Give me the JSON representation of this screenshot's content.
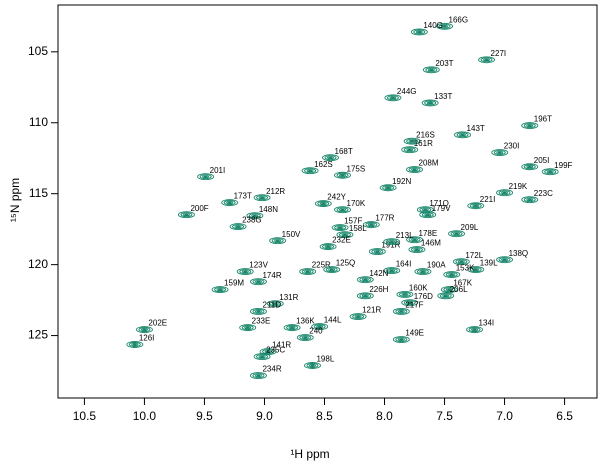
{
  "chart_data": {
    "type": "scatter",
    "x_label": "¹H ppm",
    "y_label": "¹⁵N ppm",
    "color": "#17866a",
    "xlim": [
      10.72,
      6.23
    ],
    "ylim": [
      101.7,
      129.4
    ],
    "xticks": [
      10.5,
      {
        "value": 10,
        "label": "10.0"
      },
      9.5,
      {
        "value": 9,
        "label": "9.0"
      },
      8.5,
      {
        "value": 8,
        "label": "8.0"
      },
      7.5,
      {
        "value": 7,
        "label": "7.0"
      },
      6.5
    ],
    "yticks": [
      105,
      110,
      115,
      120,
      125
    ],
    "point_labels": [
      "166G",
      "140G",
      "227I",
      "203T",
      "244G",
      "133T",
      "196T",
      "143T",
      "216S",
      "161R",
      "230I",
      "168T",
      "208M",
      "162S",
      "175S",
      "192N",
      "205I",
      "199F",
      "201I",
      "212R",
      "173T",
      "219K",
      "223C",
      "148N",
      "242Y",
      "221I",
      "170K",
      "171Q",
      "179V",
      "200F",
      "238G",
      "178E",
      "209L",
      "172L",
      "139L",
      "153K",
      "138Q",
      "123V",
      "225R",
      "174R",
      "159M",
      "167K",
      "206L",
      "226H",
      "160K",
      "176D",
      "131R",
      "211D",
      "121R",
      "217F",
      "144L",
      "136K",
      "233E",
      "149E",
      "134I",
      "202E",
      "126I",
      "240",
      "141R",
      "235C",
      "198L",
      "234R",
      "177R",
      "157F",
      "158L",
      "191R",
      "213L",
      "146M",
      "232E",
      "125Q",
      "190A",
      "164I",
      "142N",
      "150V"
    ],
    "x": [
      7.5,
      7.71,
      7.15,
      7.61,
      7.93,
      7.62,
      6.79,
      7.35,
      7.77,
      7.79,
      7.04,
      8.45,
      7.75,
      8.62,
      8.35,
      7.97,
      6.79,
      6.62,
      9.49,
      9.02,
      9.29,
      7.0,
      6.79,
      9.08,
      8.51,
      7.24,
      8.35,
      7.66,
      7.64,
      9.65,
      9.22,
      7.75,
      7.4,
      7.36,
      7.24,
      7.44,
      7.0,
      9.16,
      8.64,
      9.05,
      9.37,
      7.46,
      7.49,
      8.16,
      7.83,
      7.79,
      8.91,
      9.05,
      8.22,
      7.86,
      8.54,
      8.77,
      9.14,
      7.86,
      7.25,
      10.0,
      10.08,
      8.66,
      8.97,
      9.02,
      8.6,
      9.05,
      8.11,
      8.37,
      8.33,
      8.06,
      7.94,
      7.73,
      8.47,
      8.44,
      7.68,
      7.94,
      8.16,
      8.89
    ],
    "y": [
      103.2,
      103.6,
      105.56,
      106.27,
      108.24,
      108.6,
      110.2,
      110.85,
      111.3,
      111.9,
      112.1,
      112.46,
      113.3,
      113.38,
      113.7,
      114.58,
      113.1,
      113.45,
      113.8,
      115.28,
      115.63,
      114.93,
      115.42,
      116.55,
      115.7,
      115.85,
      116.13,
      116.13,
      116.48,
      116.48,
      117.32,
      118.24,
      117.82,
      119.79,
      120.35,
      120.7,
      119.65,
      120.49,
      120.49,
      121.2,
      121.76,
      121.76,
      122.2,
      122.2,
      122.1,
      122.68,
      122.75,
      123.3,
      123.66,
      123.3,
      124.37,
      124.44,
      124.44,
      125.28,
      124.58,
      124.58,
      125.63,
      125.14,
      126.13,
      126.48,
      127.11,
      127.82,
      117.18,
      117.39,
      117.89,
      119.08,
      118.38,
      118.94,
      118.73,
      120.35,
      120.49,
      120.42,
      121.06,
      118.31
    ]
  }
}
